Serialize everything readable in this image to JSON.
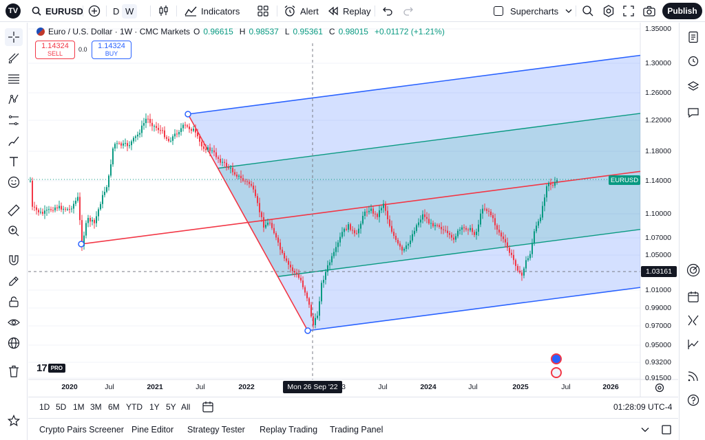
{
  "topbar": {
    "logo_text": "TV",
    "symbol": "EURUSD",
    "intervals": [
      "D",
      "W"
    ],
    "active_interval": "W",
    "indicators_label": "Indicators",
    "alert_label": "Alert",
    "replay_label": "Replay",
    "supercharts_label": "Supercharts",
    "publish_label": "Publish"
  },
  "legend": {
    "title": "Euro / U.S. Dollar · 1W · CMC Markets",
    "open_key": "O",
    "open": "0.96615",
    "high_key": "H",
    "high": "0.98537",
    "low_key": "L",
    "low": "0.95361",
    "close_key": "C",
    "close": "0.98015",
    "change": "+0.01172 (+1.21%)"
  },
  "trade": {
    "sell_price": "1.14324",
    "sell_label": "SELL",
    "spread": "0.0",
    "buy_price": "1.14324",
    "buy_label": "BUY"
  },
  "price_axis": {
    "labels": [
      "1.35000",
      "1.30000",
      "1.26000",
      "1.22000",
      "1.18000",
      "1.14000",
      "1.10000",
      "1.07000",
      "1.05000",
      "1.01000",
      "0.99000",
      "0.97000",
      "0.95000",
      "0.93200",
      "0.91500"
    ],
    "symbol_tag": "EURUSD",
    "crosshair_price": "1.03161"
  },
  "time_axis": {
    "labels": [
      {
        "text": "2020",
        "year": true
      },
      {
        "text": "Jul",
        "year": false
      },
      {
        "text": "2021",
        "year": true
      },
      {
        "text": "Jul",
        "year": false
      },
      {
        "text": "2022",
        "year": true
      },
      {
        "text": "3",
        "year": false
      },
      {
        "text": "Jul",
        "year": false
      },
      {
        "text": "2024",
        "year": true
      },
      {
        "text": "Jul",
        "year": false
      },
      {
        "text": "2025",
        "year": true
      },
      {
        "text": "Jul",
        "year": false
      },
      {
        "text": "2026",
        "year": true
      }
    ],
    "crosshair_date": "Mon 26 Sep '22"
  },
  "watermark": {
    "mark": "17",
    "pro": "PRO"
  },
  "ranges": [
    "1D",
    "5D",
    "1M",
    "3M",
    "6M",
    "YTD",
    "1Y",
    "5Y",
    "All"
  ],
  "clock": "01:28:09 UTC-4",
  "bottom_tabs": [
    "Crypto Pairs Screener",
    "Pine Editor",
    "Strategy Tester",
    "Replay Trading",
    "Trading Panel"
  ],
  "colors": {
    "up": "#089981",
    "down": "#f23645",
    "channel_outer": "#2962ff",
    "channel_inner": "#089981",
    "median": "#f23645",
    "outer_fill": "rgba(41,98,255,0.20)",
    "inner_fill": "rgba(8,153,129,0.16)"
  },
  "icons": {
    "left": [
      "crosshair-icon",
      "trend-line-icon",
      "fib-icon",
      "pattern-icon",
      "prediction-icon",
      "brush-icon",
      "text-icon",
      "emoji-icon",
      "ruler-icon",
      "zoom-in-icon",
      "magnet-icon",
      "stay-drawing-icon",
      "lock-icon",
      "eye-icon",
      "globe-icon",
      "trash-icon",
      "star-icon"
    ],
    "right": [
      "watchlist-icon",
      "alarm-icon",
      "layers-icon",
      "chat-icon",
      "target-icon",
      "calendar-icon",
      "ideas-icon",
      "signal-icon",
      "broadcast-icon",
      "help-icon"
    ]
  }
}
